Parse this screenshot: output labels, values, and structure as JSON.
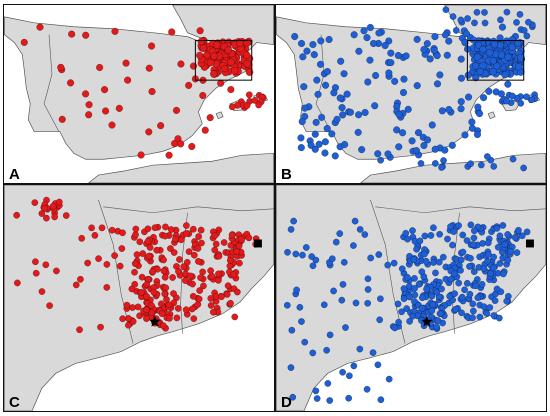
{
  "panels": [
    {
      "label": "A",
      "dot_color": "#e31a1c",
      "map": "iberia",
      "inset": true,
      "marks": false
    },
    {
      "label": "B",
      "dot_color": "#1f5fd6",
      "map": "iberia",
      "inset": true,
      "marks": false
    },
    {
      "label": "C",
      "dot_color": "#e31a1c",
      "map": "catalonia",
      "inset": false,
      "marks": true
    },
    {
      "label": "D",
      "dot_color": "#1f5fd6",
      "map": "catalonia",
      "inset": false,
      "marks": true
    }
  ]
}
